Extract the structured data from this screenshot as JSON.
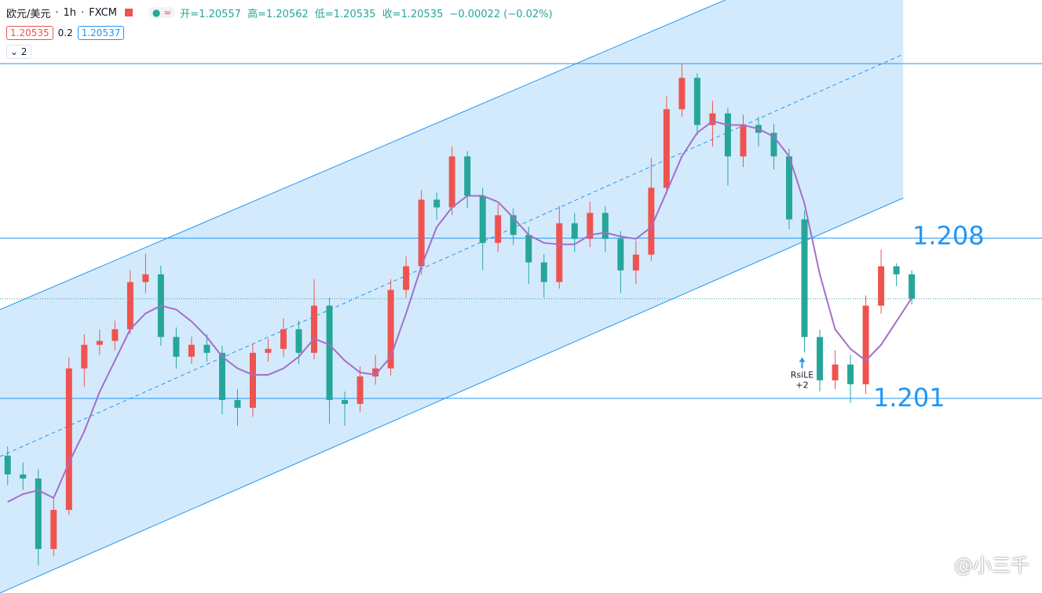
{
  "header": {
    "symbol": "欧元/美元",
    "interval": "1h",
    "exchange": "FXCM",
    "ohlc": [
      "开=1.20557",
      "高=1.20562",
      "低=1.20535",
      "收=1.20535",
      "−0.00022 (−0.02%)"
    ],
    "bid": "1.20535",
    "spread": "0.2",
    "ask": "1.20537",
    "collapsed": "2"
  },
  "watermark": "@小三千",
  "chart_data": {
    "type": "candlestick",
    "xlim": [
      -0.5,
      67.5
    ],
    "ylim": [
      1.1925,
      1.2184
    ],
    "up_color": "#ef5350",
    "down_color": "#26a69a",
    "ma_color": "#a36fc9",
    "open": [
      1.1985,
      1.19768,
      1.1975,
      1.19442,
      1.19613,
      1.20231,
      1.20334,
      1.20351,
      1.20402,
      1.20608,
      1.20642,
      1.20368,
      1.20282,
      1.20334,
      1.20299,
      1.20093,
      1.20059,
      1.20299,
      1.20316,
      1.20402,
      1.20299,
      1.20505,
      1.20093,
      1.20076,
      1.20196,
      1.20231,
      1.20574,
      1.20677,
      1.20968,
      1.20934,
      1.21157,
      1.20985,
      1.20779,
      1.209,
      1.20814,
      1.20694,
      1.20608,
      1.20865,
      1.20797,
      1.2091,
      1.20797,
      1.20659,
      1.20728,
      1.2102,
      1.21363,
      1.215,
      1.21294,
      1.21345,
      1.21157,
      1.21294,
      1.2126,
      1.21157,
      1.20882,
      1.20368,
      1.20179,
      1.20248,
      1.20162,
      1.20505,
      1.20677,
      1.20642
    ],
    "high": [
      1.1989,
      1.1982,
      1.1979,
      1.1966,
      1.2028,
      1.2038,
      1.204,
      1.2044,
      1.2066,
      1.2073,
      1.2068,
      1.2041,
      1.2037,
      1.2038,
      1.2033,
      1.2014,
      1.2034,
      1.2036,
      1.2045,
      1.2044,
      1.2062,
      1.2054,
      1.2013,
      1.2024,
      1.2029,
      1.2062,
      1.2072,
      1.2101,
      1.21,
      1.212,
      1.2118,
      1.2102,
      1.2095,
      1.2093,
      1.2085,
      1.2073,
      1.2094,
      1.2091,
      1.2096,
      1.2094,
      1.2083,
      1.2079,
      1.2115,
      1.2142,
      1.2156,
      1.2152,
      1.214,
      1.2137,
      1.2134,
      1.2133,
      1.213,
      1.2119,
      1.2092,
      1.204,
      1.2031,
      1.2029,
      1.2055,
      1.2075,
      1.2069,
      1.2066
    ],
    "low": [
      1.1972,
      1.197,
      1.1937,
      1.1941,
      1.1959,
      1.2015,
      1.2029,
      1.2031,
      1.2038,
      1.2056,
      1.2033,
      1.2023,
      1.2025,
      1.2026,
      1.2003,
      1.1998,
      1.2002,
      1.2026,
      1.2028,
      1.2025,
      1.2027,
      1.1999,
      1.1998,
      1.2004,
      1.2016,
      1.202,
      1.2054,
      1.2064,
      1.2088,
      1.209,
      1.2093,
      1.2066,
      1.2074,
      1.2077,
      1.206,
      1.2054,
      1.2058,
      1.2074,
      1.2076,
      1.2074,
      1.2056,
      1.206,
      1.207,
      1.2099,
      1.2133,
      1.2125,
      1.212,
      1.2103,
      1.2111,
      1.212,
      1.211,
      1.2084,
      1.203,
      1.2013,
      1.2014,
      1.2008,
      1.2012,
      1.2047,
      1.2059,
      1.2051
    ],
    "close": [
      1.19768,
      1.1975,
      1.19442,
      1.19613,
      1.20231,
      1.20334,
      1.20351,
      1.20402,
      1.20608,
      1.20642,
      1.20368,
      1.20282,
      1.20334,
      1.20299,
      1.20093,
      1.20059,
      1.20299,
      1.20316,
      1.20402,
      1.20299,
      1.20505,
      1.20093,
      1.20076,
      1.20196,
      1.20231,
      1.20574,
      1.20677,
      1.20968,
      1.20934,
      1.21157,
      1.20985,
      1.20779,
      1.209,
      1.20814,
      1.20694,
      1.20608,
      1.20865,
      1.20797,
      1.2091,
      1.20797,
      1.20659,
      1.20728,
      1.2102,
      1.21363,
      1.215,
      1.21294,
      1.21345,
      1.21157,
      1.21294,
      1.2126,
      1.21157,
      1.20882,
      1.20368,
      1.20179,
      1.20248,
      1.20162,
      1.20505,
      1.20677,
      1.20642,
      1.20535
    ],
    "ma": [
      1.19648,
      1.19682,
      1.19699,
      1.19665,
      1.19819,
      1.19956,
      1.20128,
      1.20265,
      1.20402,
      1.20471,
      1.20505,
      1.20488,
      1.20436,
      1.20368,
      1.20282,
      1.20231,
      1.20203,
      1.20203,
      1.20231,
      1.20282,
      1.20361,
      1.20334,
      1.20265,
      1.20213,
      1.20203,
      1.20282,
      1.20471,
      1.20677,
      1.20848,
      1.20934,
      1.20985,
      1.20985,
      1.20958,
      1.20889,
      1.20814,
      1.20779,
      1.20773,
      1.20773,
      1.20814,
      1.20824,
      1.20807,
      1.20797,
      1.20848,
      1.21002,
      1.21157,
      1.2126,
      1.21311,
      1.21294,
      1.21294,
      1.21277,
      1.21243,
      1.21157,
      1.20951,
      1.20642,
      1.20402,
      1.20316,
      1.20265,
      1.20334,
      1.20436,
      1.20539
    ],
    "channel": {
      "x": [
        -0.5,
        58.44
      ],
      "upper": [
        1.20488,
        1.22172
      ],
      "mid": [
        1.19846,
        1.21603
      ],
      "lower": [
        1.1925,
        1.20975
      ]
    },
    "hlines": [
      1.21562,
      1.208,
      1.201
    ],
    "signal": {
      "index": 52,
      "label": "RsiLE",
      "sub": "+2"
    }
  }
}
